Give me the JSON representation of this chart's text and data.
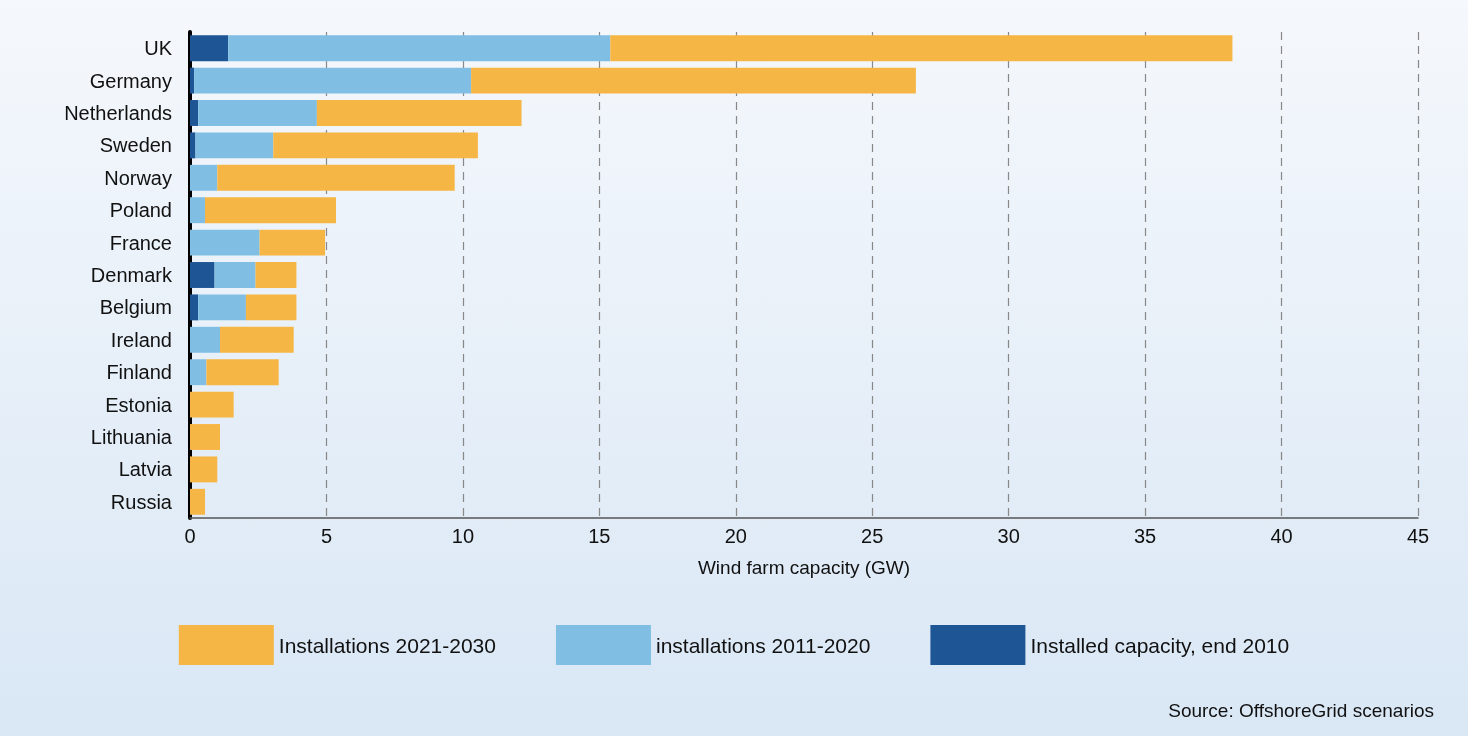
{
  "chart_data": {
    "type": "bar",
    "orientation": "horizontal",
    "stacked": true,
    "categories": [
      "UK",
      "Germany",
      "Netherlands",
      "Sweden",
      "Norway",
      "Poland",
      "France",
      "Denmark",
      "Belgium",
      "Ireland",
      "Finland",
      "Estonia",
      "Lithuania",
      "Latvia",
      "Russia"
    ],
    "series": [
      {
        "name": "Installed capacity, end 2010",
        "color": "#1e5594",
        "values": [
          1.4,
          0.15,
          0.3,
          0.2,
          0,
          0,
          0,
          0.9,
          0.3,
          0,
          0,
          0,
          0,
          0,
          0
        ]
      },
      {
        "name": "installations 2011-2020",
        "color": "#80bfe3",
        "values": [
          14.0,
          10.15,
          4.35,
          2.85,
          1.0,
          0.55,
          2.55,
          1.5,
          1.75,
          1.1,
          0.6,
          0,
          0,
          0,
          0
        ]
      },
      {
        "name": "Installations 2021-2030",
        "color": "#f6b645",
        "values": [
          22.8,
          16.3,
          7.5,
          7.5,
          8.7,
          4.8,
          2.4,
          1.5,
          1.85,
          2.7,
          2.65,
          1.6,
          1.1,
          1.0,
          0.55
        ]
      }
    ],
    "xlabel": "Wind farm capacity (GW)",
    "xlim": [
      0,
      45
    ],
    "xticks": [
      0,
      5,
      10,
      15,
      20,
      25,
      30,
      35,
      40,
      45
    ],
    "grid": "x",
    "legend": "bottom",
    "annotations": [
      "Source: OffshoreGrid scenarios"
    ]
  }
}
